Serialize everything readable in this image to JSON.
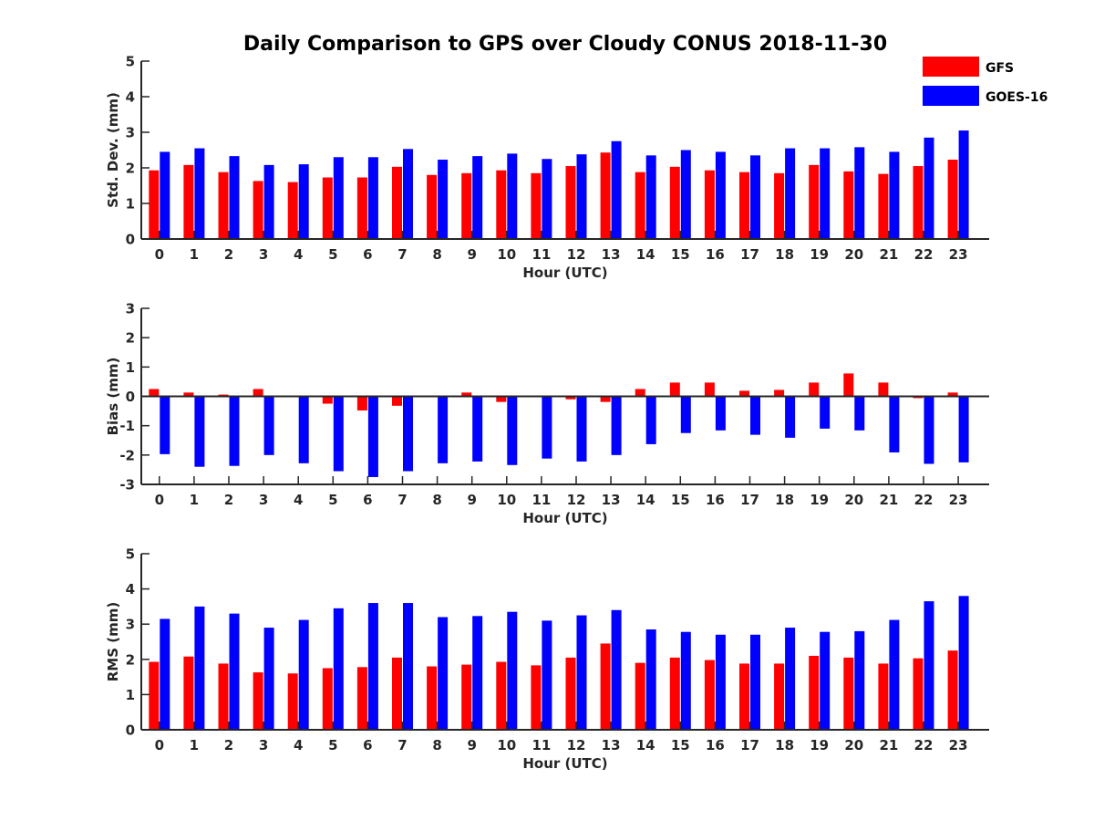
{
  "title": "Daily Comparison to GPS over Cloudy CONUS 2018-11-30",
  "legend": {
    "position": "top-right",
    "entries": [
      {
        "label": "GFS",
        "color": "#ff0000"
      },
      {
        "label": "GOES-16",
        "color": "#0000ff"
      }
    ]
  },
  "chart_data": [
    {
      "type": "bar",
      "xlabel": "Hour (UTC)",
      "ylabel": "Std. Dev. (mm)",
      "ylim": [
        0,
        5
      ],
      "yticks": [
        0,
        1,
        2,
        3,
        4,
        5
      ],
      "grid": false,
      "categories": [
        "0",
        "1",
        "2",
        "3",
        "4",
        "5",
        "6",
        "7",
        "8",
        "9",
        "10",
        "11",
        "12",
        "13",
        "14",
        "15",
        "16",
        "17",
        "18",
        "19",
        "20",
        "21",
        "22",
        "23"
      ],
      "series": [
        {
          "name": "GFS",
          "color": "#ff0000",
          "values": [
            1.93,
            2.08,
            1.88,
            1.63,
            1.6,
            1.73,
            1.73,
            2.03,
            1.8,
            1.85,
            1.93,
            1.85,
            2.05,
            2.43,
            1.88,
            2.03,
            1.93,
            1.88,
            1.85,
            2.08,
            1.9,
            1.83,
            2.05,
            2.23
          ]
        },
        {
          "name": "GOES-16",
          "color": "#0000ff",
          "values": [
            2.45,
            2.55,
            2.33,
            2.08,
            2.1,
            2.3,
            2.3,
            2.53,
            2.23,
            2.33,
            2.4,
            2.25,
            2.38,
            2.75,
            2.35,
            2.5,
            2.45,
            2.35,
            2.55,
            2.55,
            2.58,
            2.45,
            2.85,
            3.05
          ]
        }
      ]
    },
    {
      "type": "bar",
      "xlabel": "Hour (UTC)",
      "ylabel": "Bias (mm)",
      "ylim": [
        -3,
        3
      ],
      "yticks": [
        -3,
        -2,
        -1,
        0,
        1,
        2,
        3
      ],
      "grid": false,
      "categories": [
        "0",
        "1",
        "2",
        "3",
        "4",
        "5",
        "6",
        "7",
        "8",
        "9",
        "10",
        "11",
        "12",
        "13",
        "14",
        "15",
        "16",
        "17",
        "18",
        "19",
        "20",
        "21",
        "22",
        "23"
      ],
      "series": [
        {
          "name": "GFS",
          "color": "#ff0000",
          "values": [
            0.25,
            0.13,
            0.06,
            0.25,
            -0.03,
            -0.25,
            -0.48,
            -0.32,
            0.03,
            0.13,
            -0.19,
            -0.03,
            -0.1,
            -0.19,
            0.25,
            0.47,
            0.47,
            0.19,
            0.22,
            0.47,
            0.78,
            0.47,
            -0.06,
            0.13
          ]
        },
        {
          "name": "GOES-16",
          "color": "#0000ff",
          "values": [
            -1.97,
            -2.4,
            -2.37,
            -2.0,
            -2.28,
            -2.55,
            -2.75,
            -2.55,
            -2.28,
            -2.22,
            -2.34,
            -2.12,
            -2.22,
            -2.0,
            -1.63,
            -1.25,
            -1.16,
            -1.31,
            -1.41,
            -1.1,
            -1.16,
            -1.91,
            -2.3,
            -2.25
          ]
        }
      ]
    },
    {
      "type": "bar",
      "xlabel": "Hour (UTC)",
      "ylabel": "RMS (mm)",
      "ylim": [
        0,
        5
      ],
      "yticks": [
        0,
        1,
        2,
        3,
        4,
        5
      ],
      "grid": false,
      "categories": [
        "0",
        "1",
        "2",
        "3",
        "4",
        "5",
        "6",
        "7",
        "8",
        "9",
        "10",
        "11",
        "12",
        "13",
        "14",
        "15",
        "16",
        "17",
        "18",
        "19",
        "20",
        "21",
        "22",
        "23"
      ],
      "series": [
        {
          "name": "GFS",
          "color": "#ff0000",
          "values": [
            1.93,
            2.08,
            1.88,
            1.63,
            1.6,
            1.75,
            1.78,
            2.05,
            1.8,
            1.85,
            1.93,
            1.83,
            2.05,
            2.45,
            1.9,
            2.05,
            1.98,
            1.88,
            1.88,
            2.1,
            2.05,
            1.88,
            2.03,
            2.25
          ]
        },
        {
          "name": "GOES-16",
          "color": "#0000ff",
          "values": [
            3.15,
            3.5,
            3.3,
            2.9,
            3.12,
            3.45,
            3.6,
            3.6,
            3.2,
            3.23,
            3.35,
            3.1,
            3.25,
            3.4,
            2.85,
            2.78,
            2.7,
            2.7,
            2.9,
            2.78,
            2.8,
            3.12,
            3.65,
            3.8
          ]
        }
      ]
    }
  ]
}
